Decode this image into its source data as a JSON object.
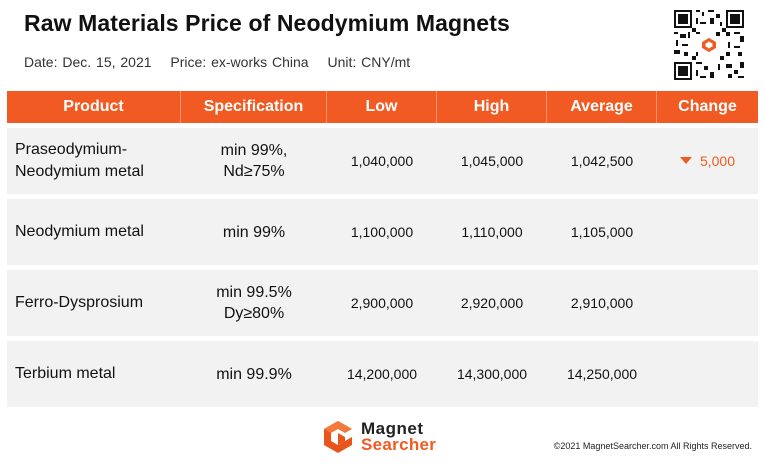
{
  "title": "Raw Materials Price of Neodymium Magnets",
  "meta": {
    "date": "Date: Dec. 15, 2021",
    "price": "Price: ex-works China",
    "unit": "Unit: CNY/mt"
  },
  "table": {
    "headers": [
      "Product",
      "Specification",
      "Low",
      "High",
      "Average",
      "Change"
    ],
    "rows": [
      {
        "product": "Praseodymium-\nNeodymium metal",
        "spec": "min 99%,\nNd≥75%",
        "low": "1,040,000",
        "high": "1,045,000",
        "average": "1,042,500",
        "change": "5,000",
        "change_direction": "down"
      },
      {
        "product": "Neodymium metal",
        "spec": "min 99%",
        "low": "1,100,000",
        "high": "1,110,000",
        "average": "1,105,000",
        "change": "",
        "change_direction": ""
      },
      {
        "product": "Ferro-Dysprosium",
        "spec": "min 99.5%\nDy≥80%",
        "low": "2,900,000",
        "high": "2,920,000",
        "average": "2,910,000",
        "change": "",
        "change_direction": ""
      },
      {
        "product": "Terbium metal",
        "spec": "min 99.9%",
        "low": "14,200,000",
        "high": "14,300,000",
        "average": "14,250,000",
        "change": "",
        "change_direction": ""
      }
    ]
  },
  "footer": {
    "logo_line1": "Magnet",
    "logo_line2": "Searcher",
    "copyright": "©2021 MagnetSearcher.com All Rights Reserved."
  },
  "colors": {
    "accent": "#f15a22",
    "row_bg": "#f2f2f2"
  },
  "icons": {
    "qr": "qr-code-icon",
    "logo": "magnet-searcher-logo-icon",
    "change_down": "triangle-down-icon"
  }
}
